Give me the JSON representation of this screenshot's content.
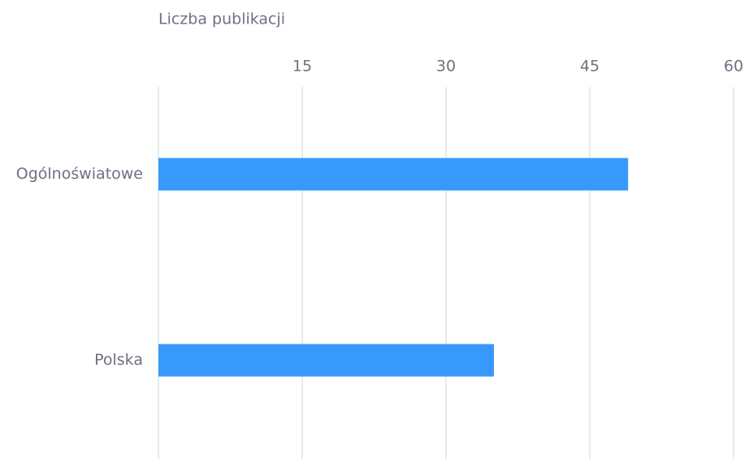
{
  "chart_data": {
    "type": "bar",
    "orientation": "horizontal",
    "x_label": "Liczba publikacji",
    "categories": [
      "Ogólnoświatowe",
      "Polska"
    ],
    "values": [
      49,
      35
    ],
    "color": "#3899fd",
    "xlim": [
      0,
      60
    ],
    "xticks": [
      15,
      30,
      45,
      60
    ],
    "grid": true
  }
}
